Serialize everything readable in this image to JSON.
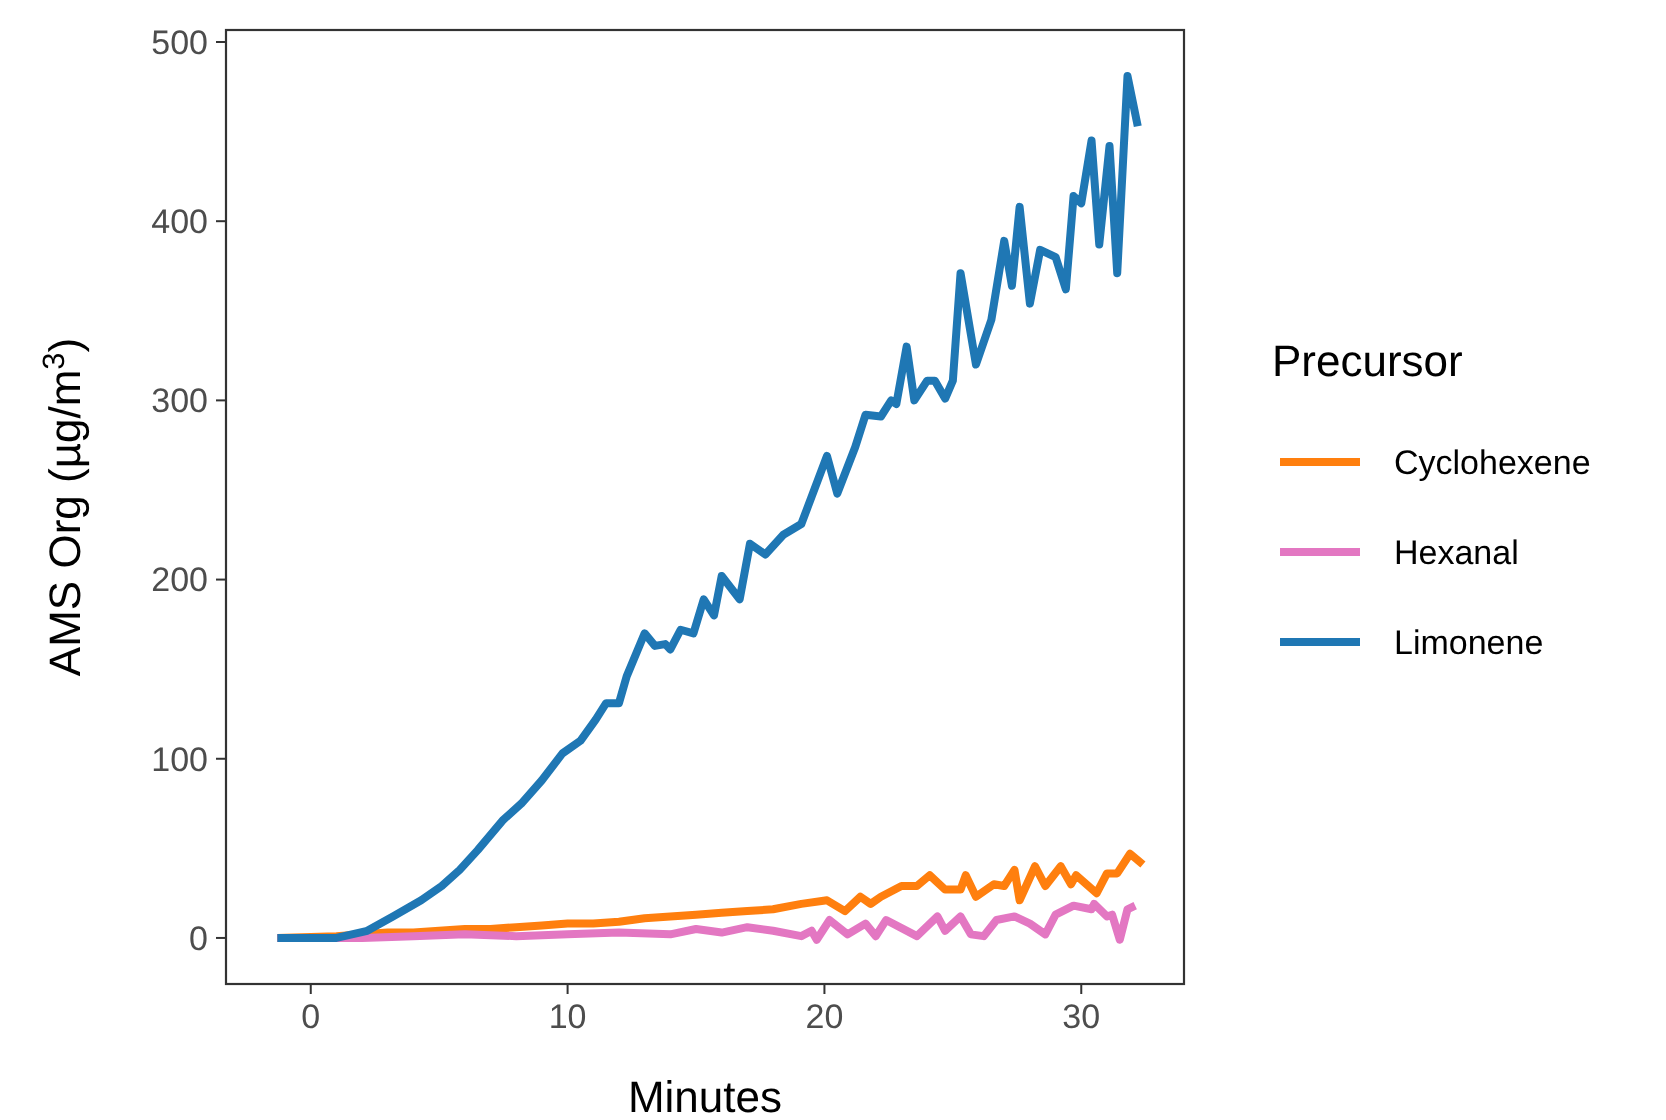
{
  "chart_data": {
    "type": "line",
    "xlabel": "Minutes",
    "ylabel": "AMS Org (µg/m$^{3}$)",
    "legend_title": "Precursor",
    "legend": "right",
    "grid": false,
    "xlim": [
      -3.3,
      34
    ],
    "ylim": [
      -25.7,
      506.7
    ],
    "xticks": [
      0,
      10,
      20,
      30
    ],
    "yticks": [
      0,
      100,
      200,
      300,
      400,
      500
    ],
    "series": [
      {
        "name": "Cyclohexene",
        "color": "#ff7f0e",
        "x": [
          -1.3,
          0,
          1,
          2,
          3,
          4,
          5,
          6,
          7,
          8,
          9,
          10,
          11,
          12,
          13,
          14,
          15,
          16,
          17,
          18,
          19.1,
          20.1,
          20.8,
          21.4,
          21.8,
          22.2,
          23.0,
          23.6,
          24.1,
          24.7,
          25.3,
          25.5,
          25.9,
          26.6,
          27.0,
          27.4,
          27.6,
          28.2,
          28.6,
          29.2,
          29.6,
          29.8,
          30.6,
          31.0,
          31.4,
          31.9,
          32.4
        ],
        "values": [
          0,
          0.5,
          1,
          2,
          3,
          3,
          4,
          5,
          5,
          6,
          7,
          8,
          8,
          9,
          11,
          12,
          13,
          14,
          15,
          16,
          19,
          21,
          15,
          23,
          19,
          23,
          29,
          29,
          35,
          27,
          27,
          35,
          23,
          30,
          29,
          38,
          21,
          40,
          29,
          40,
          30,
          35,
          25,
          36,
          36,
          47,
          41
        ]
      },
      {
        "name": "Hexanal",
        "color": "#e377c2",
        "x": [
          -1.3,
          0,
          2,
          4,
          6,
          8,
          10,
          12,
          14,
          15,
          16,
          17,
          18,
          19.1,
          19.5,
          19.7,
          20.2,
          20.9,
          21.6,
          22.0,
          22.4,
          23.6,
          24.4,
          24.7,
          25.3,
          25.7,
          26.2,
          26.7,
          27.4,
          28.0,
          28.6,
          29.0,
          29.7,
          30.4,
          30.5,
          31.0,
          31.2,
          31.5,
          31.8,
          32.1
        ],
        "values": [
          0,
          0,
          0,
          1,
          2,
          1,
          2,
          3,
          2,
          5,
          3,
          6,
          4,
          1,
          4,
          -1,
          10,
          2,
          8,
          1,
          10,
          1,
          12,
          4,
          12,
          2,
          1,
          10,
          12,
          8,
          2,
          13,
          18,
          16,
          19,
          12,
          13,
          -1,
          16,
          18
        ]
      },
      {
        "name": "Limonene",
        "color": "#1f77b4",
        "x": [
          -1.3,
          1.0,
          2.2,
          3.2,
          4.3,
          5.1,
          5.8,
          6.5,
          7.5,
          8.2,
          9.0,
          9.8,
          10.5,
          11.1,
          11.5,
          12.0,
          12.3,
          13.0,
          13.4,
          13.8,
          14.0,
          14.4,
          14.9,
          15.3,
          15.7,
          16.0,
          16.7,
          17.1,
          17.7,
          18.4,
          19.1,
          20.1,
          20.5,
          21.2,
          21.6,
          22.2,
          22.6,
          22.8,
          23.2,
          23.5,
          24.0,
          24.3,
          24.7,
          25.0,
          25.3,
          25.9,
          26.5,
          27.0,
          27.3,
          27.6,
          28.0,
          28.4,
          29.0,
          29.4,
          29.7,
          30.0,
          30.4,
          30.7,
          31.1,
          31.4,
          31.8,
          32.2
        ],
        "values": [
          0,
          0,
          4,
          12,
          21,
          29,
          38,
          49,
          66,
          75,
          88,
          103,
          110,
          122,
          131,
          131,
          146,
          170,
          163,
          164,
          161,
          172,
          170,
          189,
          180,
          202,
          189,
          220,
          214,
          225,
          231,
          269,
          248,
          274,
          292,
          291,
          300,
          298,
          330,
          300,
          311,
          311,
          301,
          311,
          371,
          320,
          345,
          389,
          364,
          408,
          354,
          384,
          380,
          362,
          414,
          410,
          445,
          387,
          442,
          371,
          481,
          453
        ]
      }
    ]
  }
}
